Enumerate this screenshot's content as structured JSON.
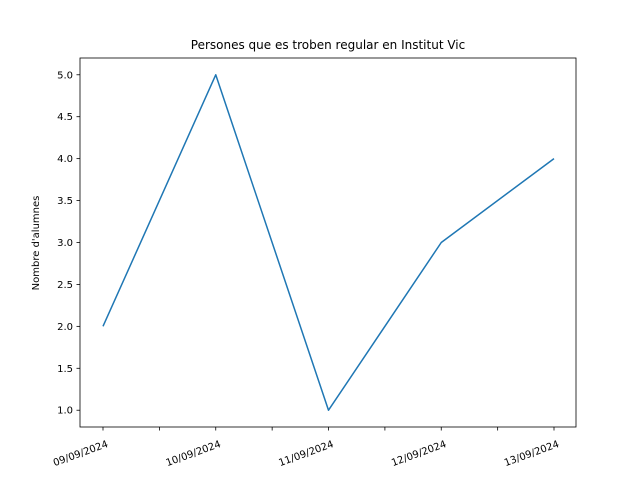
{
  "chart_data": {
    "type": "line",
    "title": "Persones que es troben regular en Institut Vic",
    "xlabel": "",
    "ylabel": "Nombre d'alumnes",
    "x": [
      "09/09/2024",
      "10/09/2024",
      "11/09/2024",
      "12/09/2024",
      "13/09/2024"
    ],
    "series": [
      {
        "values": [
          2,
          5,
          1,
          3,
          4
        ],
        "color": "#1f77b4"
      }
    ],
    "y_ticks": [
      "1.0",
      "1.5",
      "2.0",
      "2.5",
      "3.0",
      "3.5",
      "4.0",
      "4.5",
      "5.0"
    ],
    "ylim": [
      0.8,
      5.2
    ],
    "grid": false,
    "x_tick_rotation_deg": 20
  }
}
